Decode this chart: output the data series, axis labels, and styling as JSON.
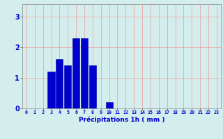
{
  "categories": [
    0,
    1,
    2,
    3,
    4,
    5,
    6,
    7,
    8,
    9,
    10,
    11,
    12,
    13,
    14,
    15,
    16,
    17,
    18,
    19,
    20,
    21,
    22,
    23
  ],
  "values": [
    0,
    0,
    0,
    1.2,
    1.6,
    1.4,
    2.3,
    2.3,
    1.4,
    0,
    0.2,
    0,
    0,
    0,
    0,
    0,
    0,
    0,
    0,
    0,
    0,
    0,
    0,
    0
  ],
  "bar_color": "#0000cc",
  "bar_edge_color": "#0000aa",
  "background_color": "#d4eeee",
  "grid_color": "#ee9999",
  "xlabel": "Précipitations 1h ( mm )",
  "xlabel_color": "#0000cc",
  "tick_color": "#0000cc",
  "ylim": [
    0,
    3.4
  ],
  "yticks": [
    0,
    1,
    2,
    3
  ],
  "xlim": [
    -0.5,
    23.5
  ]
}
